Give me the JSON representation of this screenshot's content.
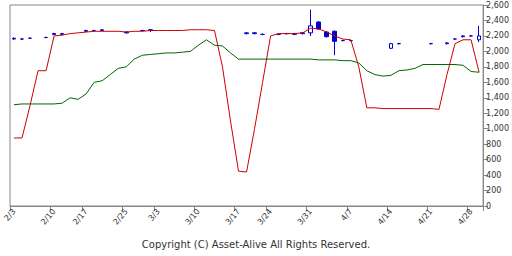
{
  "chart_data": {
    "type": "candlestick",
    "caption": "Copyright (C) Asset-Alive All Rights Reserved.",
    "categories": [
      "2/3",
      null,
      null,
      null,
      null,
      "2/10",
      null,
      null,
      null,
      "2/17",
      null,
      null,
      null,
      null,
      "2/25",
      null,
      null,
      null,
      "3/3",
      null,
      null,
      null,
      null,
      "3/10",
      null,
      null,
      null,
      null,
      "3/17",
      null,
      null,
      null,
      "3/24",
      null,
      null,
      null,
      null,
      "3/31",
      null,
      null,
      null,
      null,
      "4/7",
      null,
      null,
      null,
      null,
      "4/14",
      null,
      null,
      null,
      null,
      "4/21",
      null,
      null,
      null,
      null,
      "4/28",
      null
    ],
    "series": [
      {
        "type": "candlestick",
        "color": "#0000cc",
        "values": [
          [
            2160,
            2170,
            2150,
            2180
          ],
          [
            2160,
            2160,
            2150,
            2170
          ],
          [
            2170,
            2170,
            2160,
            2180
          ],
          null,
          [
            2180,
            2180,
            2170,
            2190
          ],
          [
            2230,
            2220,
            2210,
            2240
          ],
          [
            2220,
            2230,
            2210,
            2240
          ],
          null,
          null,
          [
            2260,
            2270,
            2250,
            2280
          ],
          [
            2270,
            2270,
            2260,
            2280
          ],
          [
            2270,
            2280,
            2270,
            2290
          ],
          null,
          null,
          [
            2250,
            2240,
            2230,
            2260
          ],
          null,
          [
            2270,
            2270,
            2260,
            2280
          ],
          [
            2280,
            2270,
            2250,
            2290
          ],
          null,
          null,
          null,
          null,
          null,
          null,
          null,
          null,
          null,
          null,
          null,
          [
            2230,
            2240,
            2220,
            2250
          ],
          [
            2240,
            2230,
            2220,
            2250
          ],
          [
            2220,
            2220,
            2210,
            2230
          ],
          null,
          [
            2220,
            2220,
            2210,
            2230
          ],
          [
            2230,
            2230,
            2220,
            2240
          ],
          [
            2220,
            2230,
            2210,
            2240
          ],
          [
            2240,
            2230,
            2220,
            2250
          ],
          [
            2240,
            2330,
            2200,
            2540
          ],
          [
            2380,
            2290,
            2280,
            2390
          ],
          [
            2250,
            2190,
            2180,
            2260
          ],
          [
            2260,
            2130,
            1950,
            2270
          ],
          [
            2140,
            2140,
            2130,
            2150
          ],
          [
            2140,
            2140,
            2130,
            2150
          ],
          null,
          null,
          null,
          null,
          [
            2040,
            2100,
            2030,
            2110
          ],
          [
            2100,
            2100,
            2090,
            2110
          ],
          null,
          null,
          null,
          [
            2100,
            2100,
            2090,
            2110
          ],
          null,
          [
            2100,
            2110,
            2090,
            2120
          ],
          [
            2160,
            2160,
            2150,
            2170
          ],
          [
            2190,
            2200,
            2180,
            2210
          ],
          [
            2200,
            2200,
            2190,
            2210
          ],
          [
            2150,
            2200,
            2120,
            2330
          ]
        ]
      },
      {
        "type": "line",
        "color": "#cc0000",
        "values": [
          880,
          880,
          1300,
          1750,
          1750,
          2200,
          2210,
          2230,
          2240,
          2250,
          2260,
          2260,
          2260,
          2260,
          2250,
          2260,
          2260,
          2270,
          2270,
          2270,
          2270,
          2270,
          2280,
          2280,
          2280,
          2270,
          1800,
          1100,
          450,
          440,
          1000,
          1600,
          2200,
          2230,
          2230,
          2230,
          2240,
          2300,
          2290,
          2250,
          2200,
          2160,
          2150,
          1800,
          1270,
          1270,
          1260,
          1260,
          1260,
          1260,
          1260,
          1260,
          1260,
          1250,
          1700,
          2100,
          2150,
          2150,
          1730
        ]
      },
      {
        "type": "line",
        "color": "#006600",
        "values": [
          1310,
          1320,
          1320,
          1320,
          1320,
          1320,
          1330,
          1400,
          1380,
          1450,
          1600,
          1620,
          1700,
          1780,
          1800,
          1900,
          1950,
          1960,
          1970,
          1980,
          1980,
          1990,
          2000,
          2080,
          2150,
          2080,
          2070,
          1980,
          1900,
          1900,
          1900,
          1900,
          1900,
          1900,
          1900,
          1900,
          1900,
          1900,
          1890,
          1890,
          1890,
          1880,
          1880,
          1850,
          1750,
          1700,
          1680,
          1690,
          1750,
          1760,
          1780,
          1830,
          1830,
          1830,
          1830,
          1830,
          1820,
          1740,
          1730
        ]
      }
    ],
    "ylim": [
      0,
      2600
    ],
    "yticks": [
      0,
      200,
      400,
      600,
      800,
      1000,
      1200,
      1400,
      1600,
      1800,
      2000,
      2200,
      2400,
      2600
    ],
    "grid": false
  }
}
